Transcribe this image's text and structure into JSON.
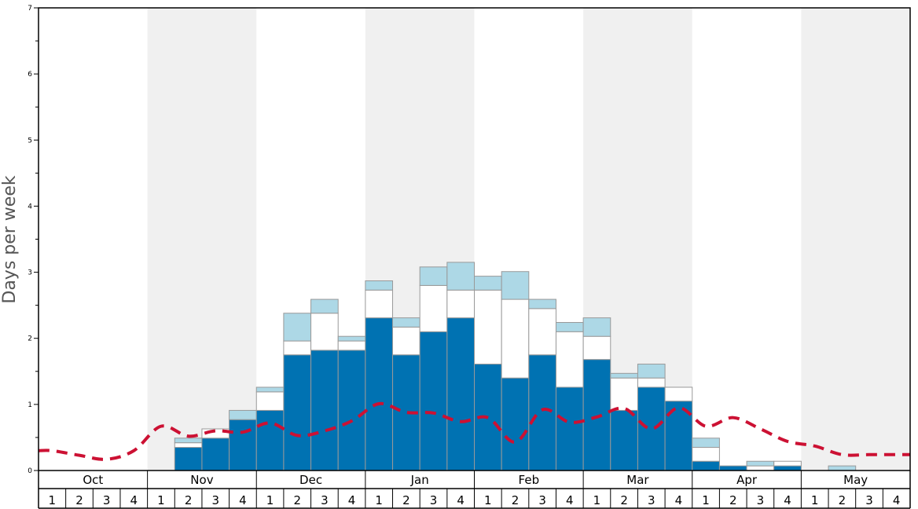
{
  "chart_data": {
    "type": "bar",
    "ylabel": "Days per week",
    "xlabel": "",
    "ylim": [
      0,
      7
    ],
    "y_ticks": [
      "0",
      "1",
      "2",
      "3",
      "4",
      "5",
      "6",
      "7"
    ],
    "months": [
      "Oct",
      "Nov",
      "Dec",
      "Jan",
      "Feb",
      "Mar",
      "Apr",
      "May"
    ],
    "week_labels": [
      "1",
      "2",
      "3",
      "4"
    ],
    "shaded_months": [
      "Nov",
      "Jan",
      "Mar",
      "May"
    ],
    "colors": {
      "layer1": "#0072b2",
      "layer2": "#ffffff",
      "layer3": "#add8e6",
      "line": "#cc1133",
      "shade": "#f0f0f0"
    },
    "series": [
      {
        "values": [
          0,
          0,
          0,
          0,
          0,
          0.35,
          0.49,
          0.77,
          0.91,
          1.75,
          1.82,
          1.82,
          2.31,
          1.75,
          2.1,
          2.31,
          1.61,
          1.4,
          1.75,
          1.26,
          1.68,
          0.91,
          1.26,
          1.05,
          0.14,
          0.07,
          0,
          0.07,
          0,
          0,
          0,
          0
        ]
      },
      {
        "values": [
          0,
          0,
          0,
          0,
          0,
          0.07,
          0.14,
          0,
          0.28,
          0.21,
          0.56,
          0.14,
          0.42,
          0.42,
          0.7,
          0.42,
          1.12,
          1.19,
          0.7,
          0.84,
          0.35,
          0.49,
          0.14,
          0.21,
          0.21,
          0,
          0.07,
          0.07,
          0,
          0,
          0,
          0
        ]
      },
      {
        "values": [
          0,
          0,
          0,
          0,
          0,
          0.07,
          0,
          0.14,
          0.07,
          0.42,
          0.21,
          0.07,
          0.14,
          0.14,
          0.28,
          0.42,
          0.21,
          0.42,
          0.14,
          0.14,
          0.28,
          0.07,
          0.21,
          0,
          0.14,
          0,
          0.07,
          0,
          0,
          0.07,
          0,
          0
        ]
      },
      {
        "type": "line",
        "values": [
          0.3,
          0.23,
          0.17,
          0.3,
          0.67,
          0.52,
          0.6,
          0.58,
          0.72,
          0.53,
          0.6,
          0.75,
          1.01,
          0.88,
          0.87,
          0.74,
          0.8,
          0.43,
          0.92,
          0.73,
          0.81,
          0.94,
          0.63,
          0.95,
          0.67,
          0.8,
          0.63,
          0.44,
          0.37,
          0.24,
          0.24,
          0.24
        ]
      }
    ]
  }
}
